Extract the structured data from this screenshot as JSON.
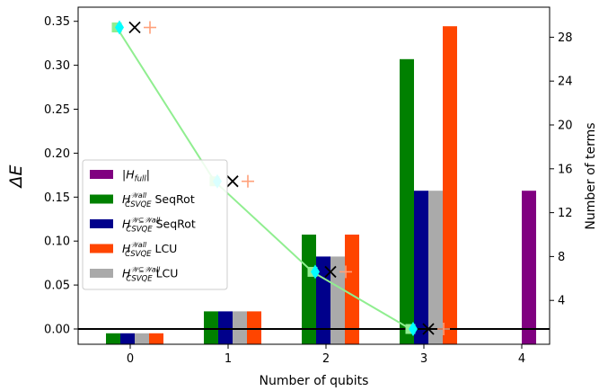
{
  "chart_data": {
    "type": "bar",
    "x_categories": [
      "0",
      "1",
      "2",
      "3",
      "4"
    ],
    "xlabel": "Number of qubits",
    "ylabel_left": "ΔE",
    "ylabel_right": "Number of terms",
    "ylim_left": [
      -0.018,
      0.36
    ],
    "yticks_left": [
      "0.00",
      "0.05",
      "0.10",
      "0.15",
      "0.20",
      "0.25",
      "0.30",
      "0.35"
    ],
    "ylim_right": [
      0,
      32
    ],
    "yticks_right": [
      "4",
      "8",
      "12",
      "16",
      "20",
      "24",
      "28",
      "32"
    ],
    "bar_series": [
      {
        "name": "|H_full|",
        "color": "#800080",
        "values": [
          null,
          null,
          null,
          null,
          14
        ]
      },
      {
        "name": "H_CSVQE^Wall SeqRot",
        "color": "#008000",
        "values": [
          1,
          3,
          10,
          26,
          null
        ]
      },
      {
        "name": "H_CSVQE^W⊆Wall SeqRot",
        "color": "#00008b",
        "values": [
          1,
          3,
          8,
          14,
          null
        ]
      },
      {
        "name": "H_CSVQE^W⊆Wall LCU",
        "color": "#aaaaaa",
        "values": [
          1,
          3,
          8,
          14,
          null
        ]
      },
      {
        "name": "H_CSVQE^Wall LCU",
        "color": "#ff4500",
        "values": [
          1,
          3,
          10,
          29,
          null
        ]
      }
    ],
    "line_series": [
      {
        "marker": "square",
        "color": "#90ee90",
        "x": [
          0,
          1,
          2,
          3
        ],
        "y": [
          0.343,
          0.168,
          0.065,
          0.0
        ]
      }
    ],
    "marker_series": [
      {
        "marker": "diamond",
        "color": "#00ffff",
        "x": [
          0,
          1,
          2,
          3
        ],
        "y": [
          0.343,
          0.168,
          0.065,
          0.0
        ]
      },
      {
        "marker": "x",
        "color": "#000000",
        "x": [
          0,
          1,
          2,
          3
        ],
        "y": [
          0.343,
          0.168,
          0.065,
          0.0
        ]
      },
      {
        "marker": "plus",
        "color": "#ffa07a",
        "x": [
          0,
          1,
          2,
          3
        ],
        "y": [
          0.343,
          0.168,
          0.065,
          0.0
        ]
      }
    ],
    "hline_left": 0.0,
    "legend": {
      "placement": "center-left",
      "entries": [
        {
          "color": "#800080",
          "text": "|",
          "italic": "H",
          "sub": "full",
          "sup": "",
          "suffix": "|"
        },
        {
          "color": "#008000",
          "text": "",
          "italic": "H",
          "sub": "CSVQE",
          "sup": "𝒲all",
          "suffix": " SeqRot"
        },
        {
          "color": "#00008b",
          "text": "",
          "italic": "H",
          "sub": "CSVQE",
          "sup": "𝒲⊆𝒲all",
          "suffix": " SeqRot"
        },
        {
          "color": "#ff4500",
          "text": "",
          "italic": "H",
          "sub": "CSVQE",
          "sup": "𝒲all",
          "suffix": " LCU"
        },
        {
          "color": "#aaaaaa",
          "text": "",
          "italic": "H",
          "sub": "CSVQE",
          "sup": "𝒲⊆𝒲all",
          "suffix": " LCU"
        }
      ]
    }
  }
}
